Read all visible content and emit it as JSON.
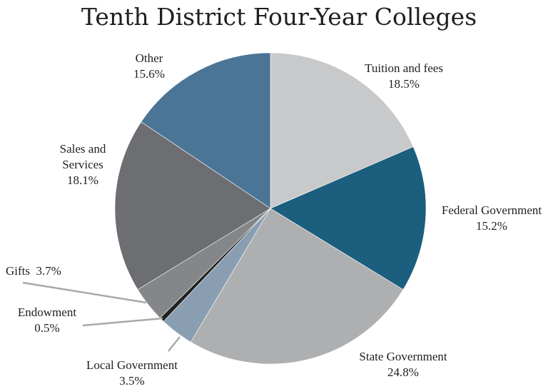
{
  "chart_data": {
    "type": "pie",
    "title": "Tenth District Four-Year Colleges",
    "slices": [
      {
        "name": "Tuition and fees",
        "value": 18.5,
        "label": "18.5%",
        "color": "#c8c9cb"
      },
      {
        "name": "Federal Government",
        "value": 15.2,
        "label": "15.2%",
        "color": "#1b5e7e"
      },
      {
        "name": "State Government",
        "value": 24.8,
        "label": "24.8%",
        "color": "#aeafb1"
      },
      {
        "name": "Local Government",
        "value": 3.5,
        "label": "3.5%",
        "color": "#8a9eb2"
      },
      {
        "name": "Endowment",
        "value": 0.5,
        "label": "0.5%",
        "color": "#222222"
      },
      {
        "name": "Gifts",
        "value": 3.7,
        "label": "3.7%",
        "color": "#848689"
      },
      {
        "name": "Sales and Services",
        "value": 18.1,
        "label": "18.1%",
        "color": "#6d6e71"
      },
      {
        "name": "Other",
        "value": 15.6,
        "label": "15.6%",
        "color": "#4b7597"
      }
    ],
    "start": "top",
    "direction": "clockwise"
  }
}
